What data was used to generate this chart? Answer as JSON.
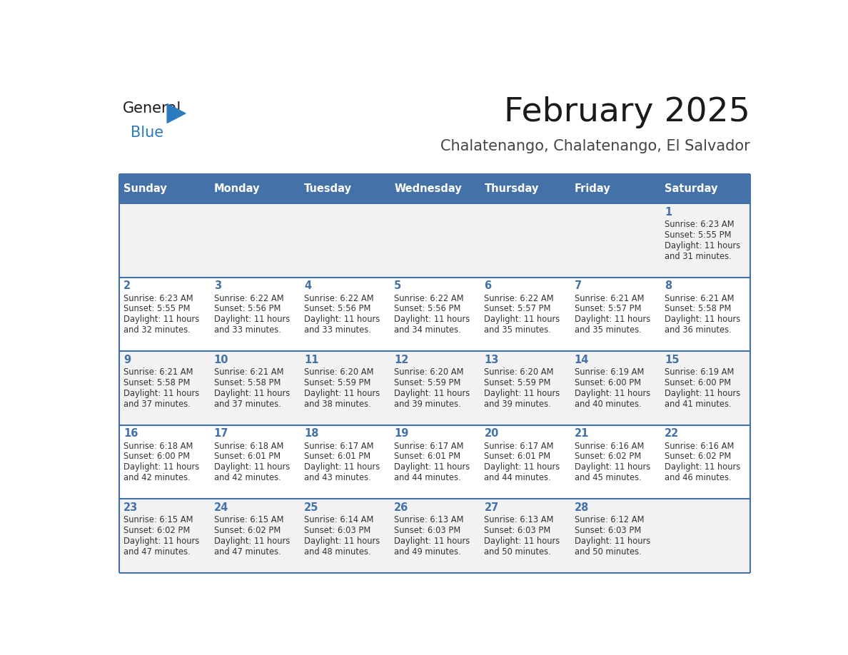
{
  "title": "February 2025",
  "subtitle": "Chalatenango, Chalatenango, El Salvador",
  "header_bg": "#4472a8",
  "header_text": "#ffffff",
  "row_bg_even": "#f2f2f2",
  "row_bg_odd": "#ffffff",
  "day_header_color": "#4472a8",
  "text_color": "#333333",
  "line_color": "#4472a8",
  "days_of_week": [
    "Sunday",
    "Monday",
    "Tuesday",
    "Wednesday",
    "Thursday",
    "Friday",
    "Saturday"
  ],
  "calendar_data": [
    [
      {
        "day": "",
        "sunrise": "",
        "sunset": "",
        "daylight": ""
      },
      {
        "day": "",
        "sunrise": "",
        "sunset": "",
        "daylight": ""
      },
      {
        "day": "",
        "sunrise": "",
        "sunset": "",
        "daylight": ""
      },
      {
        "day": "",
        "sunrise": "",
        "sunset": "",
        "daylight": ""
      },
      {
        "day": "",
        "sunrise": "",
        "sunset": "",
        "daylight": ""
      },
      {
        "day": "",
        "sunrise": "",
        "sunset": "",
        "daylight": ""
      },
      {
        "day": "1",
        "sunrise": "6:23 AM",
        "sunset": "5:55 PM",
        "daylight": "11 hours and 31 minutes."
      }
    ],
    [
      {
        "day": "2",
        "sunrise": "6:23 AM",
        "sunset": "5:55 PM",
        "daylight": "11 hours and 32 minutes."
      },
      {
        "day": "3",
        "sunrise": "6:22 AM",
        "sunset": "5:56 PM",
        "daylight": "11 hours and 33 minutes."
      },
      {
        "day": "4",
        "sunrise": "6:22 AM",
        "sunset": "5:56 PM",
        "daylight": "11 hours and 33 minutes."
      },
      {
        "day": "5",
        "sunrise": "6:22 AM",
        "sunset": "5:56 PM",
        "daylight": "11 hours and 34 minutes."
      },
      {
        "day": "6",
        "sunrise": "6:22 AM",
        "sunset": "5:57 PM",
        "daylight": "11 hours and 35 minutes."
      },
      {
        "day": "7",
        "sunrise": "6:21 AM",
        "sunset": "5:57 PM",
        "daylight": "11 hours and 35 minutes."
      },
      {
        "day": "8",
        "sunrise": "6:21 AM",
        "sunset": "5:58 PM",
        "daylight": "11 hours and 36 minutes."
      }
    ],
    [
      {
        "day": "9",
        "sunrise": "6:21 AM",
        "sunset": "5:58 PM",
        "daylight": "11 hours and 37 minutes."
      },
      {
        "day": "10",
        "sunrise": "6:21 AM",
        "sunset": "5:58 PM",
        "daylight": "11 hours and 37 minutes."
      },
      {
        "day": "11",
        "sunrise": "6:20 AM",
        "sunset": "5:59 PM",
        "daylight": "11 hours and 38 minutes."
      },
      {
        "day": "12",
        "sunrise": "6:20 AM",
        "sunset": "5:59 PM",
        "daylight": "11 hours and 39 minutes."
      },
      {
        "day": "13",
        "sunrise": "6:20 AM",
        "sunset": "5:59 PM",
        "daylight": "11 hours and 39 minutes."
      },
      {
        "day": "14",
        "sunrise": "6:19 AM",
        "sunset": "6:00 PM",
        "daylight": "11 hours and 40 minutes."
      },
      {
        "day": "15",
        "sunrise": "6:19 AM",
        "sunset": "6:00 PM",
        "daylight": "11 hours and 41 minutes."
      }
    ],
    [
      {
        "day": "16",
        "sunrise": "6:18 AM",
        "sunset": "6:00 PM",
        "daylight": "11 hours and 42 minutes."
      },
      {
        "day": "17",
        "sunrise": "6:18 AM",
        "sunset": "6:01 PM",
        "daylight": "11 hours and 42 minutes."
      },
      {
        "day": "18",
        "sunrise": "6:17 AM",
        "sunset": "6:01 PM",
        "daylight": "11 hours and 43 minutes."
      },
      {
        "day": "19",
        "sunrise": "6:17 AM",
        "sunset": "6:01 PM",
        "daylight": "11 hours and 44 minutes."
      },
      {
        "day": "20",
        "sunrise": "6:17 AM",
        "sunset": "6:01 PM",
        "daylight": "11 hours and 44 minutes."
      },
      {
        "day": "21",
        "sunrise": "6:16 AM",
        "sunset": "6:02 PM",
        "daylight": "11 hours and 45 minutes."
      },
      {
        "day": "22",
        "sunrise": "6:16 AM",
        "sunset": "6:02 PM",
        "daylight": "11 hours and 46 minutes."
      }
    ],
    [
      {
        "day": "23",
        "sunrise": "6:15 AM",
        "sunset": "6:02 PM",
        "daylight": "11 hours and 47 minutes."
      },
      {
        "day": "24",
        "sunrise": "6:15 AM",
        "sunset": "6:02 PM",
        "daylight": "11 hours and 47 minutes."
      },
      {
        "day": "25",
        "sunrise": "6:14 AM",
        "sunset": "6:03 PM",
        "daylight": "11 hours and 48 minutes."
      },
      {
        "day": "26",
        "sunrise": "6:13 AM",
        "sunset": "6:03 PM",
        "daylight": "11 hours and 49 minutes."
      },
      {
        "day": "27",
        "sunrise": "6:13 AM",
        "sunset": "6:03 PM",
        "daylight": "11 hours and 50 minutes."
      },
      {
        "day": "28",
        "sunrise": "6:12 AM",
        "sunset": "6:03 PM",
        "daylight": "11 hours and 50 minutes."
      },
      {
        "day": "",
        "sunrise": "",
        "sunset": "",
        "daylight": ""
      }
    ]
  ]
}
